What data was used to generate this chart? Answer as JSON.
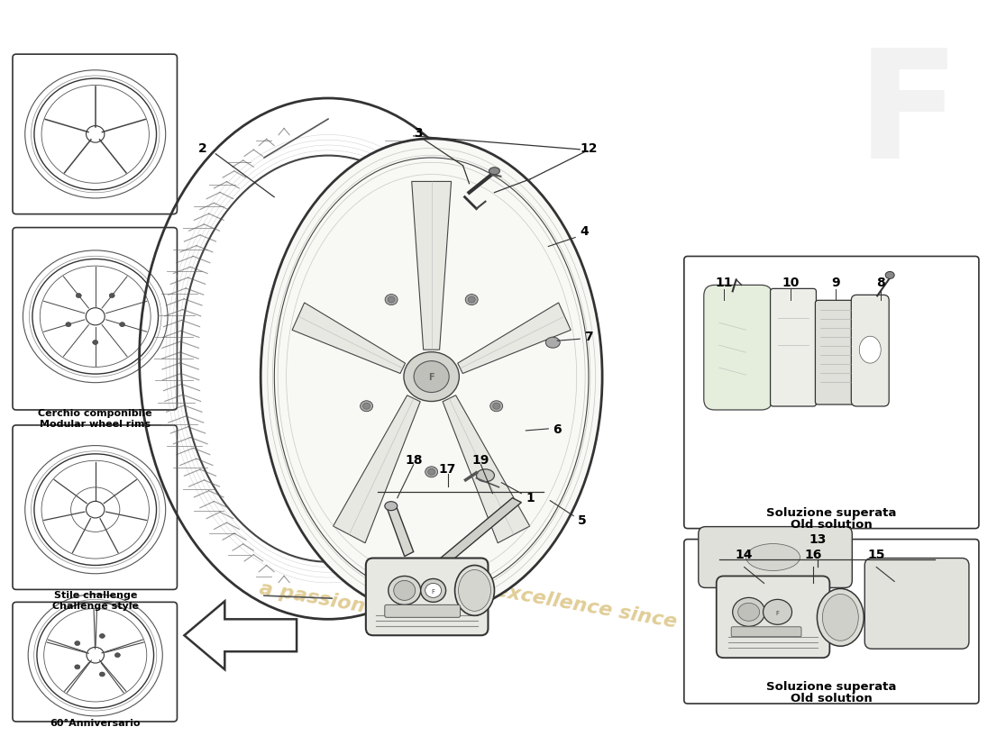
{
  "bg_color": "#ffffff",
  "line_color": "#222222",
  "label_color": "#000000",
  "box_line_color": "#333333",
  "left_box1_label1": "Cerchio componibile",
  "left_box1_label2": "Modular wheel rims",
  "left_box2_label1": "Stile challenge",
  "left_box2_label2": "Challenge style",
  "left_box3_label1": "60°Anniversario",
  "right_box1_label1": "Soluzione superata",
  "right_box1_label2": "Old solution",
  "right_box2_label1": "Soluzione superata",
  "right_box2_label2": "Old solution",
  "watermark_text1": "a passion fo",
  "watermark_text2": "r excellence since 1985",
  "watermark_color": "#d4b86a"
}
